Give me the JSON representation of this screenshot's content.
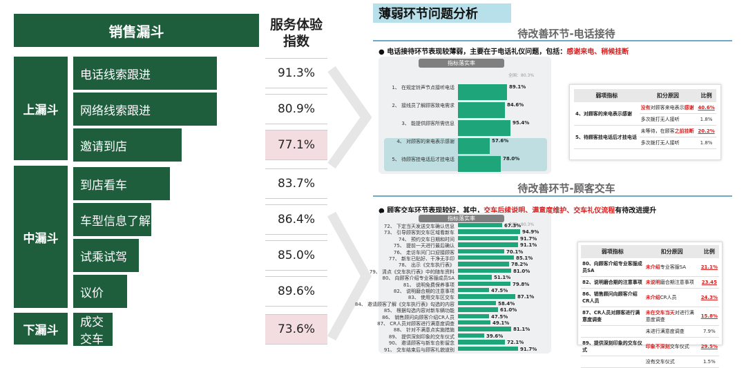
{
  "left": {
    "funnel_title": "销售漏斗",
    "index_title": "服务体验指数",
    "stages": {
      "upper": "上漏斗",
      "middle": "中漏斗",
      "lower": "下漏斗"
    },
    "items": [
      {
        "label": "电话线索跟进",
        "value": "91.3%",
        "level": 0.77,
        "highlight": false
      },
      {
        "label": "网络线索跟进",
        "value": "80.9%",
        "level": 0.77,
        "highlight": false
      },
      {
        "label": "邀请到店",
        "value": "77.1%",
        "level": 0.58,
        "highlight": true
      },
      {
        "label": "到店看车",
        "value": "83.7%",
        "level": 0.52,
        "highlight": false
      },
      {
        "label": "车型信息了解",
        "value": "86.4%",
        "level": 0.42,
        "highlight": false
      },
      {
        "label": "试乘试驾",
        "value": "85.0%",
        "level": 0.35,
        "highlight": false
      },
      {
        "label": "议价",
        "value": "89.6%",
        "level": 0.29,
        "highlight": false
      },
      {
        "label": "成交交车",
        "value": "73.6%",
        "level": 0.21,
        "highlight": true
      }
    ]
  },
  "right": {
    "title": "薄弱环节问题分析",
    "phone": {
      "section_title": "待改善环节-电话接待",
      "bullet_pre": "电话接待环节表现较薄弱，主要在于电话礼仪问题，包括：",
      "bullet_red": "感谢来电、稍候挂断",
      "indicator_header": "指标落实率",
      "overall": "全国：80.3%",
      "rows": [
        {
          "label": "1、 在规定铃声节点接听电话",
          "value": 0.891,
          "text": "89.1%"
        },
        {
          "label": "2、 接线员了解顾客致电需求",
          "value": 0.846,
          "text": "84.6%"
        },
        {
          "label": "3、 能提供顾客所需信息",
          "value": 0.954,
          "text": "95.4%"
        },
        {
          "label": "4、 对顾客的来电表示感谢",
          "value": 0.576,
          "text": "57.6%"
        },
        {
          "label": "5、 待顾客挂电话后才挂电话",
          "value": 0.78,
          "text": "78.0%"
        }
      ],
      "table": {
        "headers": [
          "弱项指标",
          "扣分原因",
          "比例"
        ],
        "rows": [
          {
            "indicator": "4、对顾客的来电表示感谢",
            "reason_a": "没有",
            "reason_b": "对顾客来电表示",
            "reason_c": "感谢",
            "value": "40.6%"
          },
          {
            "indicator": "",
            "reason_a": "",
            "reason_b": "多次拨打无人接听",
            "reason_c": "",
            "value": "1.8%"
          },
          {
            "indicator": "5、待顾客挂电话后才挂电话",
            "reason_a": "",
            "reason_b": "未等待，在顾客",
            "reason_c": "之前挂断",
            "value": "20.2%"
          },
          {
            "indicator": "",
            "reason_a": "",
            "reason_b": "多次拨打无人接听",
            "reason_c": "",
            "value": "1.8%"
          }
        ]
      }
    },
    "delivery": {
      "section_title": "待改善环节-顾客交车",
      "bullet_pre": "顾客交车环节表现较好，其中，",
      "bullet_red": "交车后续说明、满意度维护、交车礼仪流程",
      "bullet_post": "有待改进提升",
      "indicator_header": "指标落实率",
      "overall": "全国：80.3%",
      "rows": [
        {
          "label": "72、 下定当天发送交车确认信息",
          "value": 0.673,
          "text": "67.3%"
        },
        {
          "label": "73、 引导顾客到交车区域看新车",
          "value": 0.949,
          "text": "94.9%"
        },
        {
          "label": "74、 预约交车日期和时间",
          "value": 0.917,
          "text": "91.7%"
        },
        {
          "label": "75、 提前一天进行最后确认",
          "value": 0.911,
          "text": "91.1%"
        },
        {
          "label": "76、 走访车间门口迎接顾客",
          "value": 0.701,
          "text": "70.1%"
        },
        {
          "label": "77、 新车已贴好、干净无手印",
          "value": 0.851,
          "text": "85.1%"
        },
        {
          "label": "78、 出示《交车执行表》",
          "value": 0.782,
          "text": "78.2%"
        },
        {
          "label": "79、 清点《交车执行表》中的随车资料",
          "value": 0.81,
          "text": "81.0%"
        },
        {
          "label": "80、 向顾客介绍专业客服成员SA",
          "value": 0.511,
          "text": "51.1%"
        },
        {
          "label": "81、 说明免费保养事项",
          "value": 0.798,
          "text": "79.8%"
        },
        {
          "label": "82、 说明磨合期的注意事项",
          "value": 0.475,
          "text": "47.5%"
        },
        {
          "label": "83、 使用交车区交车",
          "value": 0.871,
          "text": "87.1%"
        },
        {
          "label": "84、 邀请顾客了解《交车执行表》勾选的内容",
          "value": 0.584,
          "text": "58.4%"
        },
        {
          "label": "85、 根据勾选内容对新车辆功能",
          "value": 0.61,
          "text": "61.0%"
        },
        {
          "label": "86、 销售顾问向顾客介绍CR人员",
          "value": 0.475,
          "text": "47.5%"
        },
        {
          "label": "87、 CR人员对顾客进行满意度调查",
          "value": 0.491,
          "text": "49.1%"
        },
        {
          "label": "88、 针对不满意点实施措施",
          "value": 0.811,
          "text": "81.1%"
        },
        {
          "label": "89、 提供深刻印象的交车仪式",
          "value": 0.396,
          "text": "39.6%"
        },
        {
          "label": "90、 邀请顾客与新车合影留念",
          "value": 0.721,
          "text": "72.1%"
        },
        {
          "label": "91、 交车结束后与顾客礼貌道别",
          "value": 0.917,
          "text": "91.7%"
        }
      ],
      "table": {
        "headers": [
          "弱项指标",
          "扣分原因",
          "比例"
        ],
        "rows": [
          {
            "indicator": "80、向顾客介绍专业客服成员SA",
            "reason_red": "未介绍",
            "reason": "专业客服SA",
            "value": "21.1%",
            "red": true
          },
          {
            "indicator": "82、说明磨合期的注意事项",
            "reason_red": "未说明",
            "reason": "磨合期注意事项",
            "value": "23.45",
            "red": true
          },
          {
            "indicator": "86、销售顾问向顾客介绍CR人员",
            "reason_red": "未介绍",
            "reason": "CR人员",
            "value": "24.3%",
            "red": true
          },
          {
            "indicator": "87、CR人员对顾客进行满意度调查",
            "reason_red": "未在交车当天",
            "reason": "对进行满意度调查",
            "value": "15.8%",
            "red": true
          },
          {
            "indicator": "",
            "reason_red": "",
            "reason": "未进行满意度调查",
            "value": "7.9%",
            "red": false
          },
          {
            "indicator": "89、提供深刻印象的交车仪式",
            "reason_red": "印象不深刻",
            "reason": "交车仪式",
            "value": "29.5%",
            "red": true
          },
          {
            "indicator": "",
            "reason_red": "",
            "reason": "没有交车仪式",
            "value": "1.5%",
            "red": false
          }
        ]
      }
    }
  }
}
